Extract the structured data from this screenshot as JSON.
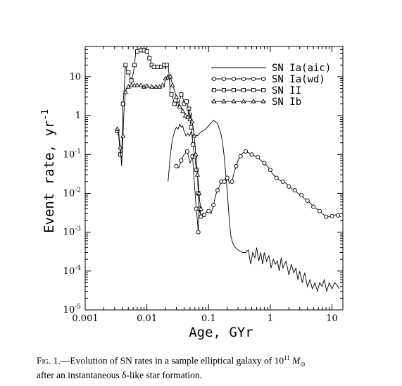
{
  "figure": {
    "caption_prefix": "Fig. 1.",
    "caption_text": "—Evolution of SN rates in a sample elliptical galaxy of 10",
    "caption_exp": "11",
    "caption_mass": "M",
    "caption_sun": "⊙",
    "caption_line2": "after an instantaneous δ-like star formation."
  },
  "chart_data": {
    "type": "line",
    "xscale": "log",
    "yscale": "log",
    "xlim": [
      0.001,
      15
    ],
    "ylim": [
      1e-05,
      60
    ],
    "xlabel": "Age,  GYr",
    "ylabel": "Event  rate,  yr",
    "ylabel_sup": "-1",
    "legend_position": "top-right",
    "x_ticks": [
      {
        "value": 0.001,
        "label": "0.001"
      },
      {
        "value": 0.01,
        "label": "0.01"
      },
      {
        "value": 0.1,
        "label": "0.1"
      },
      {
        "value": 1,
        "label": "1"
      },
      {
        "value": 10,
        "label": "10"
      }
    ],
    "y_ticks": [
      {
        "value": 1e-05,
        "base": "10",
        "exp": "-5"
      },
      {
        "value": 0.0001,
        "base": "10",
        "exp": "-4"
      },
      {
        "value": 0.001,
        "base": "10",
        "exp": "-3"
      },
      {
        "value": 0.01,
        "base": "10",
        "exp": "-2"
      },
      {
        "value": 0.1,
        "base": "10",
        "exp": "-1"
      },
      {
        "value": 1,
        "base": "1",
        "exp": ""
      },
      {
        "value": 10,
        "base": "10",
        "exp": ""
      }
    ],
    "series": [
      {
        "name": "SN  Ia(aic)",
        "marker": "none",
        "x": [
          0.022,
          0.024,
          0.026,
          0.028,
          0.03,
          0.032,
          0.034,
          0.036,
          0.038,
          0.04,
          0.043,
          0.046,
          0.049,
          0.052,
          0.055,
          0.058,
          0.06,
          0.063,
          0.066,
          0.07,
          0.075,
          0.08,
          0.09,
          0.1,
          0.11,
          0.12,
          0.13,
          0.14,
          0.15,
          0.16,
          0.17,
          0.18,
          0.19,
          0.2,
          0.21,
          0.22,
          0.23,
          0.24,
          0.25,
          0.27,
          0.3,
          0.33,
          0.36,
          0.4,
          0.44,
          0.48,
          0.52,
          0.56,
          0.6,
          0.65,
          0.7,
          0.75,
          0.8,
          0.87,
          0.95,
          1.03,
          1.12,
          1.2,
          1.3,
          1.4,
          1.5,
          1.6,
          1.8,
          2.0,
          2.2,
          2.4,
          2.6,
          2.8,
          3.0,
          3.3,
          3.6,
          4.0,
          4.4,
          4.8,
          5.3,
          5.8,
          6.3,
          6.9,
          7.5,
          8.2,
          9.0,
          10.0,
          11.0,
          12.0,
          13.0
        ],
        "y": [
          0.02,
          0.1,
          0.25,
          0.38,
          0.5,
          0.45,
          0.6,
          0.5,
          0.55,
          0.4,
          0.3,
          0.35,
          0.3,
          0.38,
          0.3,
          0.35,
          0.28,
          0.32,
          0.3,
          0.34,
          0.38,
          0.4,
          0.45,
          0.55,
          0.65,
          0.75,
          0.7,
          0.62,
          0.45,
          0.32,
          0.18,
          0.08,
          0.03,
          0.012,
          0.004,
          0.0015,
          0.0008,
          0.0006,
          0.0005,
          0.0004,
          0.00035,
          0.00032,
          0.0003,
          0.0003,
          0.00035,
          0.00015,
          0.0003,
          0.00022,
          0.0004,
          0.00018,
          0.0003,
          0.00015,
          0.0003,
          0.00018,
          0.00025,
          0.00012,
          0.0002,
          0.00015,
          0.00018,
          0.0001,
          0.00022,
          0.00012,
          0.00018,
          8e-05,
          0.00015,
          9e-05,
          0.00012,
          6e-05,
          0.0001,
          5e-05,
          9e-05,
          4e-05,
          6e-05,
          3.5e-05,
          5e-05,
          3e-05,
          5e-05,
          4e-05,
          6e-05,
          3e-05,
          5e-05,
          3.5e-05,
          5e-05,
          4.5e-05,
          3.5e-05
        ]
      },
      {
        "name": "SN  Ia(wd)",
        "marker": "circle",
        "x": [
          0.03,
          0.033,
          0.036,
          0.04,
          0.045,
          0.05,
          0.055,
          0.06,
          0.063,
          0.065,
          0.068,
          0.07,
          0.075,
          0.08,
          0.085,
          0.09,
          0.1,
          0.11,
          0.12,
          0.13,
          0.14,
          0.15,
          0.16,
          0.17,
          0.18,
          0.19,
          0.2,
          0.22,
          0.24,
          0.26,
          0.28,
          0.3,
          0.33,
          0.36,
          0.4,
          0.45,
          0.5,
          0.56,
          0.63,
          0.7,
          0.8,
          0.9,
          1.0,
          1.12,
          1.26,
          1.4,
          1.6,
          1.8,
          2.0,
          2.24,
          2.5,
          2.8,
          3.2,
          3.5,
          4.0,
          4.5,
          5.0,
          5.6,
          6.3,
          7.0,
          8.0,
          9.0,
          10.0,
          11.2,
          12.5,
          14.0
        ],
        "y": [
          0.05,
          0.045,
          0.07,
          0.1,
          0.12,
          0.06,
          0.09,
          0.012,
          0.004,
          0.0025,
          0.001,
          0.004,
          0.0025,
          0.003,
          0.0028,
          0.0032,
          0.0035,
          0.003,
          0.005,
          0.009,
          0.012,
          0.015,
          0.02,
          0.022,
          0.02,
          0.025,
          0.025,
          0.018,
          0.02,
          0.035,
          0.05,
          0.07,
          0.09,
          0.11,
          0.12,
          0.11,
          0.1,
          0.09,
          0.085,
          0.07,
          0.06,
          0.05,
          0.04,
          0.03,
          0.025,
          0.022,
          0.02,
          0.018,
          0.015,
          0.013,
          0.012,
          0.01,
          0.009,
          0.0075,
          0.0065,
          0.0055,
          0.0045,
          0.004,
          0.0035,
          0.003,
          0.0025,
          0.0025,
          0.0026,
          0.0028,
          0.0027,
          0.0025
        ]
      },
      {
        "name": "SN  II",
        "marker": "square",
        "x": [
          0.0033,
          0.0035,
          0.0037,
          0.0039,
          0.0041,
          0.0043,
          0.0045,
          0.0047,
          0.005,
          0.0053,
          0.0056,
          0.006,
          0.0063,
          0.0066,
          0.007,
          0.0075,
          0.008,
          0.0085,
          0.009,
          0.0095,
          0.01,
          0.0105,
          0.011,
          0.0115,
          0.012,
          0.0125,
          0.013,
          0.014,
          0.015,
          0.016,
          0.017,
          0.018,
          0.019,
          0.02,
          0.021,
          0.022,
          0.023,
          0.024,
          0.025,
          0.026,
          0.028,
          0.03,
          0.032,
          0.034,
          0.036,
          0.038,
          0.04,
          0.042,
          0.044,
          0.046,
          0.048,
          0.05,
          0.052,
          0.054,
          0.056,
          0.058,
          0.06,
          0.062,
          0.064,
          0.066,
          0.068,
          0.07,
          0.072,
          0.075
        ],
        "y": [
          0.4,
          0.3,
          0.1,
          0.08,
          2.0,
          5.0,
          20.0,
          15.0,
          13.0,
          10.0,
          8.0,
          12.0,
          20.0,
          45.0,
          45.0,
          45.0,
          48.0,
          45.0,
          48.0,
          46.0,
          45.0,
          42.0,
          30.0,
          25.0,
          20.0,
          20.0,
          18.0,
          18.0,
          18.0,
          18.0,
          18.0,
          18.0,
          20.0,
          16.0,
          20.0,
          22.0,
          10.0,
          3.5,
          3.5,
          3.0,
          2.0,
          2.0,
          2.0,
          2.5,
          3.5,
          3.0,
          2.0,
          2.5,
          2.3,
          1.8,
          1.5,
          0.9,
          0.5,
          0.3,
          0.18,
          0.12,
          0.09,
          0.05,
          0.04,
          0.03,
          0.01,
          0.005,
          0.004,
          0.003
        ]
      },
      {
        "name": "SN  Ib",
        "marker": "triangle",
        "x": [
          0.0033,
          0.0035,
          0.0037,
          0.0039,
          0.0041,
          0.0043,
          0.0045,
          0.0047,
          0.005,
          0.0053,
          0.0056,
          0.006,
          0.0063,
          0.0066,
          0.007,
          0.0075,
          0.008,
          0.0085,
          0.009,
          0.0095,
          0.01,
          0.011,
          0.012,
          0.013,
          0.014,
          0.015,
          0.016,
          0.017,
          0.018,
          0.019,
          0.02,
          0.021,
          0.022,
          0.023,
          0.024,
          0.025,
          0.026,
          0.028,
          0.03,
          0.032,
          0.034,
          0.036,
          0.038,
          0.04,
          0.042,
          0.044,
          0.046,
          0.048,
          0.05,
          0.052,
          0.054,
          0.056,
          0.058,
          0.06,
          0.062,
          0.064,
          0.066,
          0.068,
          0.07,
          0.072,
          0.075
        ],
        "y": [
          0.45,
          0.35,
          0.15,
          0.05,
          0.3,
          2.0,
          4.0,
          5.0,
          5.5,
          6.0,
          6.0,
          6.0,
          6.0,
          5.5,
          6.0,
          5.5,
          6.0,
          5.8,
          5.5,
          5.5,
          5.8,
          5.5,
          5.5,
          5.5,
          5.5,
          5.5,
          5.5,
          5.5,
          6.0,
          5.5,
          9.0,
          10.0,
          9.5,
          10.0,
          10.0,
          8.0,
          6.0,
          4.5,
          3.0,
          2.0,
          1.7,
          1.5,
          1.3,
          1.2,
          1.0,
          1.0,
          0.9,
          1.5,
          0.8,
          1.2,
          0.7,
          0.5,
          0.3,
          0.2,
          0.1,
          0.06,
          0.03,
          0.02,
          0.01,
          0.006,
          0.004
        ]
      }
    ]
  }
}
